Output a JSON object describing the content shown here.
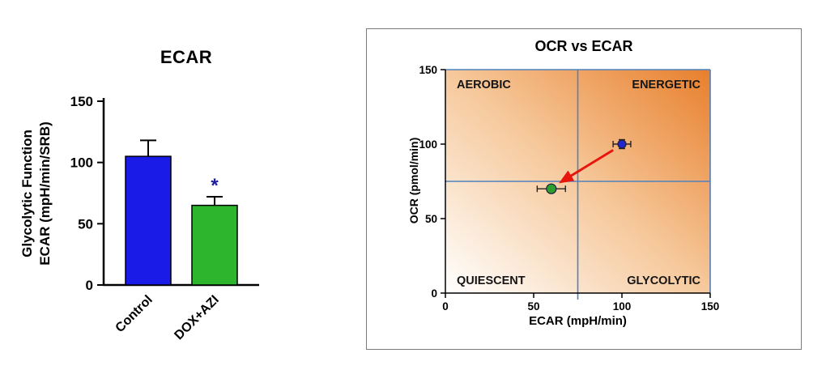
{
  "page": {
    "background": "#ffffff"
  },
  "chart_data": [
    {
      "type": "bar",
      "title": "ECAR",
      "ylabel_lines": [
        "Glycolytic Function",
        "ECAR (mpH/min/SRB)"
      ],
      "categories": [
        "Control",
        "DOX+AZI"
      ],
      "values": [
        105,
        65
      ],
      "errors": [
        13,
        7
      ],
      "bar_colors": [
        "#1b1be8",
        "#2db52d"
      ],
      "ylim": [
        0,
        150
      ],
      "yticks": [
        0,
        50,
        100,
        150
      ],
      "significance": {
        "bar_index": 1,
        "label": "*",
        "color": "#1c1c9c"
      }
    },
    {
      "type": "scatter",
      "title": "OCR vs ECAR",
      "xlabel": "ECAR (mpH/min)",
      "ylabel": "OCR (pmol/min)",
      "xlim": [
        0,
        150
      ],
      "ylim": [
        0,
        150
      ],
      "xticks": [
        0,
        50,
        100,
        150
      ],
      "yticks": [
        0,
        50,
        100,
        150
      ],
      "crosshair": {
        "x": 75,
        "y": 75,
        "color": "#4f81bd"
      },
      "quadrant_labels": [
        {
          "text": "AEROBIC",
          "position": "top-left"
        },
        {
          "text": "ENERGETIC",
          "position": "top-right"
        },
        {
          "text": "QUIESCENT",
          "position": "bottom-left"
        },
        {
          "text": "GLYCOLYTIC",
          "position": "bottom-right"
        }
      ],
      "points": [
        {
          "x": 100,
          "y": 100,
          "xerr": 5,
          "yerr": 3,
          "color": "#2525cc",
          "radius": 5
        },
        {
          "x": 60,
          "y": 70,
          "xerr": 8,
          "yerr": 0,
          "color": "#2e9e2e",
          "radius": 6
        }
      ],
      "arrow": {
        "from_x": 95,
        "from_y": 96,
        "to_x": 66,
        "to_y": 75,
        "color": "#e8150d"
      },
      "gradient": {
        "start": "#ffffff",
        "mid": "#f6c99c",
        "end": "#e87f2c"
      }
    }
  ]
}
